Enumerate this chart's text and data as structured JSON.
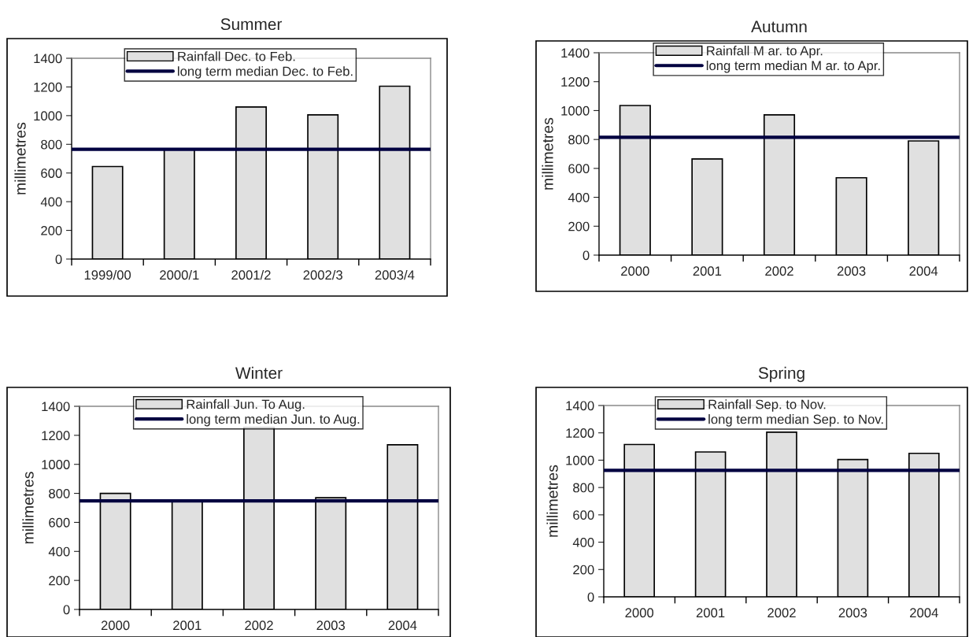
{
  "chart_data": [
    {
      "type": "bar",
      "title": "Summer",
      "ylabel": "millimetres",
      "categories": [
        "1999/00",
        "2000/1",
        "2001/2",
        "2002/3",
        "2003/4"
      ],
      "series": [
        {
          "name": "Rainfall Dec. to Feb.",
          "color": "#e0e0e0",
          "values": [
            645,
            765,
            1060,
            1005,
            1205
          ]
        }
      ],
      "ref_lines": [
        {
          "axis": "y",
          "value": 765,
          "label": "long term median Dec. to Feb.",
          "color": "#000040"
        }
      ],
      "ylim": [
        0,
        1400
      ],
      "yticks": [
        0,
        200,
        400,
        600,
        800,
        1000,
        1200,
        1400
      ],
      "legend": "top",
      "grid": false
    },
    {
      "type": "bar",
      "title": "Autumn",
      "ylabel": "millimetres",
      "categories": [
        "2000",
        "2001",
        "2002",
        "2003",
        "2004"
      ],
      "series": [
        {
          "name": "Rainfall M ar. to Apr.",
          "color": "#e0e0e0",
          "values": [
            1035,
            665,
            970,
            535,
            790
          ]
        }
      ],
      "ref_lines": [
        {
          "axis": "y",
          "value": 815,
          "label": "long term median M ar. to Apr.",
          "color": "#000040"
        }
      ],
      "ylim": [
        0,
        1400
      ],
      "yticks": [
        0,
        200,
        400,
        600,
        800,
        1000,
        1200,
        1400
      ],
      "legend": "top",
      "grid": false
    },
    {
      "type": "bar",
      "title": "Winter",
      "ylabel": "millimetres",
      "categories": [
        "2000",
        "2001",
        "2002",
        "2003",
        "2004"
      ],
      "series": [
        {
          "name": "Rainfall Jun. To Aug.",
          "color": "#e0e0e0",
          "values": [
            800,
            750,
            1255,
            770,
            1135
          ]
        }
      ],
      "ref_lines": [
        {
          "axis": "y",
          "value": 748,
          "label": "long term median Jun. to Aug.",
          "color": "#000040"
        }
      ],
      "ylim": [
        0,
        1400
      ],
      "yticks": [
        0,
        200,
        400,
        600,
        800,
        1000,
        1200,
        1400
      ],
      "legend": "top",
      "grid": false
    },
    {
      "type": "bar",
      "title": "Spring",
      "ylabel": "millimetres",
      "categories": [
        "2000",
        "2001",
        "2002",
        "2003",
        "2004"
      ],
      "series": [
        {
          "name": "Rainfall Sep. to Nov.",
          "color": "#e0e0e0",
          "values": [
            1115,
            1060,
            1205,
            1005,
            1050
          ]
        }
      ],
      "ref_lines": [
        {
          "axis": "y",
          "value": 925,
          "label": "long term median Sep. to Nov.",
          "color": "#000040"
        }
      ],
      "ylim": [
        0,
        1400
      ],
      "yticks": [
        0,
        200,
        400,
        600,
        800,
        1000,
        1200,
        1400
      ],
      "legend": "top",
      "grid": false
    }
  ]
}
